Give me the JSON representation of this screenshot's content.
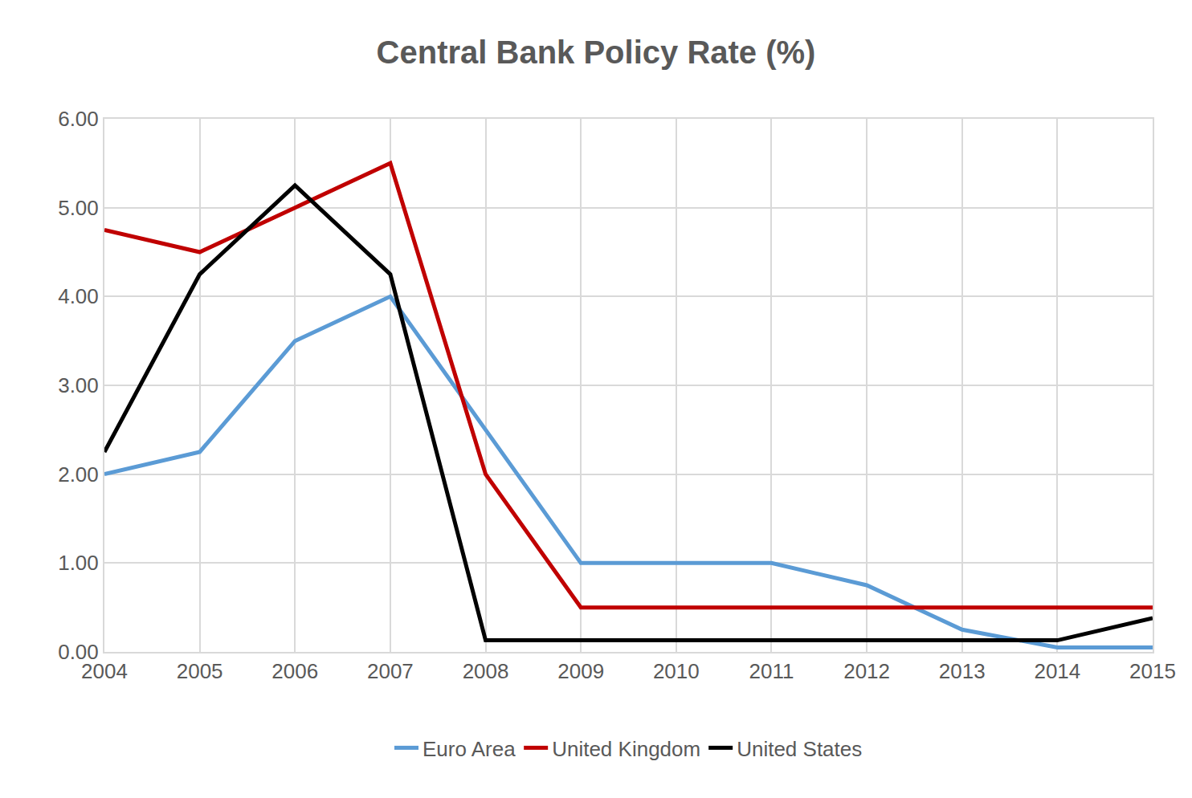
{
  "chart_data": {
    "type": "line",
    "title": "Central Bank Policy Rate (%)",
    "categories": [
      "2004",
      "2005",
      "2006",
      "2007",
      "2008",
      "2009",
      "2010",
      "2011",
      "2012",
      "2013",
      "2014",
      "2015"
    ],
    "series": [
      {
        "name": "Euro Area",
        "color": "#5b9bd5",
        "values": [
          2.0,
          2.25,
          3.5,
          4.0,
          2.5,
          1.0,
          1.0,
          1.0,
          0.75,
          0.25,
          0.05,
          0.05
        ]
      },
      {
        "name": "United Kingdom",
        "color": "#c00000",
        "values": [
          4.75,
          4.5,
          5.0,
          5.5,
          2.0,
          0.5,
          0.5,
          0.5,
          0.5,
          0.5,
          0.5,
          0.5
        ]
      },
      {
        "name": "United States",
        "color": "#000000",
        "values": [
          2.25,
          4.25,
          5.25,
          4.25,
          0.13,
          0.13,
          0.13,
          0.13,
          0.13,
          0.13,
          0.13,
          0.38
        ]
      }
    ],
    "ylim": [
      0,
      6
    ],
    "yticks": [
      {
        "value": 0,
        "label": "0.00"
      },
      {
        "value": 1,
        "label": "1.00"
      },
      {
        "value": 2,
        "label": "2.00"
      },
      {
        "value": 3,
        "label": "3.00"
      },
      {
        "value": 4,
        "label": "4.00"
      },
      {
        "value": 5,
        "label": "5.00"
      },
      {
        "value": 6,
        "label": "6.00"
      }
    ],
    "grid": true,
    "legend": "bottom"
  }
}
